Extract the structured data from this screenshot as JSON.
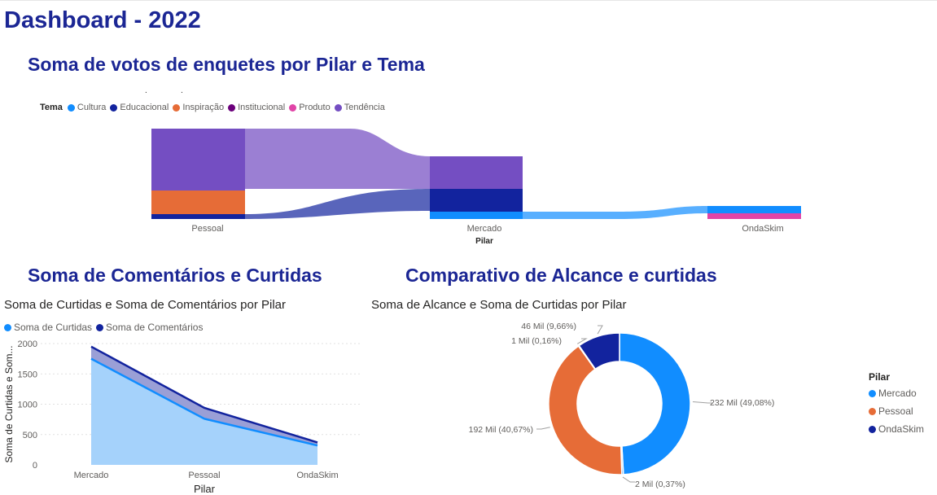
{
  "dashboard": {
    "title": "Dashboard - 2022"
  },
  "sankey": {
    "section_title": "Soma de votos de enquetes por Pilar e Tema",
    "legend_title": "Tema",
    "legend": [
      {
        "name": "Cultura",
        "color": "#118dff"
      },
      {
        "name": "Educacional",
        "color": "#12239e"
      },
      {
        "name": "Inspiração",
        "color": "#e66c37"
      },
      {
        "name": "Institucional",
        "color": "#6b007b"
      },
      {
        "name": "Produto",
        "color": "#e044a7"
      },
      {
        "name": "Tendência",
        "color": "#744ec2"
      }
    ],
    "x_labels": [
      "Pessoal",
      "Mercado",
      "OndaSkim"
    ],
    "axis_title": "Pilar"
  },
  "area": {
    "section_title": "Soma de Comentários e Curtidas",
    "visual_title": "Soma de Curtidas e Soma de Comentários por Pilar",
    "legend": [
      {
        "name": "Soma de Curtidas",
        "color": "#118dff"
      },
      {
        "name": "Soma de Comentários",
        "color": "#12239e"
      }
    ],
    "ylabel": "Soma de Curtidas e Som...",
    "xlabel": "Pilar"
  },
  "donut": {
    "section_title": "Comparativo de Alcance e curtidas",
    "visual_title": "Soma de Alcance e Soma de Curtidas por Pilar",
    "legend_title": "Pilar",
    "legend": [
      {
        "name": "Mercado",
        "color": "#118dff"
      },
      {
        "name": "Pessoal",
        "color": "#e66c37"
      },
      {
        "name": "OndaSkim",
        "color": "#12239e"
      }
    ],
    "labels": [
      "232 Mil (49,08%)",
      "2 Mil (0,37%)",
      "192 Mil (40,67%)",
      "1 Mil (0,16%)",
      "46 Mil (9,66%)"
    ]
  },
  "chart_data": [
    {
      "type": "area",
      "title": "Soma de Curtidas e Soma de Comentários por Pilar",
      "xlabel": "Pilar",
      "ylabel": "Soma de Curtidas e Som...",
      "categories": [
        "Mercado",
        "Pessoal",
        "OndaSkim"
      ],
      "series": [
        {
          "name": "Soma de Curtidas",
          "values": [
            1750,
            760,
            320
          ]
        },
        {
          "name": "Soma de Comentários",
          "values": [
            200,
            180,
            50
          ]
        }
      ],
      "stacked": true,
      "ylim": [
        0,
        2000
      ],
      "yticks": [
        0,
        500,
        1000,
        1500,
        2000
      ],
      "grid": true,
      "legend": "top-left"
    },
    {
      "type": "pie",
      "donut": true,
      "title": "Soma de Alcance e Soma de Curtidas por Pilar",
      "slices": [
        {
          "pilar": "Mercado",
          "series": "Alcance",
          "value": 232000,
          "percent": 49.08,
          "label": "232 Mil (49,08%)",
          "color": "#118dff"
        },
        {
          "pilar": "Mercado",
          "series": "Curtidas",
          "value": 2000,
          "percent": 0.37,
          "label": "2 Mil (0,37%)",
          "color": "#118dff"
        },
        {
          "pilar": "Pessoal",
          "series": "Alcance",
          "value": 192000,
          "percent": 40.67,
          "label": "192 Mil (40,67%)",
          "color": "#e66c37"
        },
        {
          "pilar": "Pessoal",
          "series": "Curtidas",
          "value": 1000,
          "percent": 0.16,
          "label": "1 Mil (0,16%)",
          "color": "#e66c37"
        },
        {
          "pilar": "OndaSkim",
          "series": "Alcance",
          "value": 46000,
          "percent": 9.66,
          "label": "46 Mil (9,66%)",
          "color": "#12239e"
        }
      ],
      "legend": "right"
    },
    {
      "type": "sankey",
      "title": "Soma de votos de enquetes por Pilar e Tema",
      "xlabel": "Pilar",
      "nodes": [
        "Pessoal",
        "Mercado",
        "OndaSkim"
      ],
      "flows": [
        {
          "pilar": "Pessoal",
          "tema": "Tendência",
          "value": 48
        },
        {
          "pilar": "Pessoal",
          "tema": "Inspiração",
          "value": 28
        },
        {
          "pilar": "Pessoal",
          "tema": "Educacional",
          "value": 6
        },
        {
          "pilar": "Mercado",
          "tema": "Tendência",
          "value": 40
        },
        {
          "pilar": "Mercado",
          "tema": "Educacional",
          "value": 31
        },
        {
          "pilar": "Mercado",
          "tema": "Cultura",
          "value": 9
        },
        {
          "pilar": "OndaSkim",
          "tema": "Cultura",
          "value": 9
        },
        {
          "pilar": "OndaSkim",
          "tema": "Produto",
          "value": 7
        }
      ],
      "legend": "top-left"
    }
  ]
}
